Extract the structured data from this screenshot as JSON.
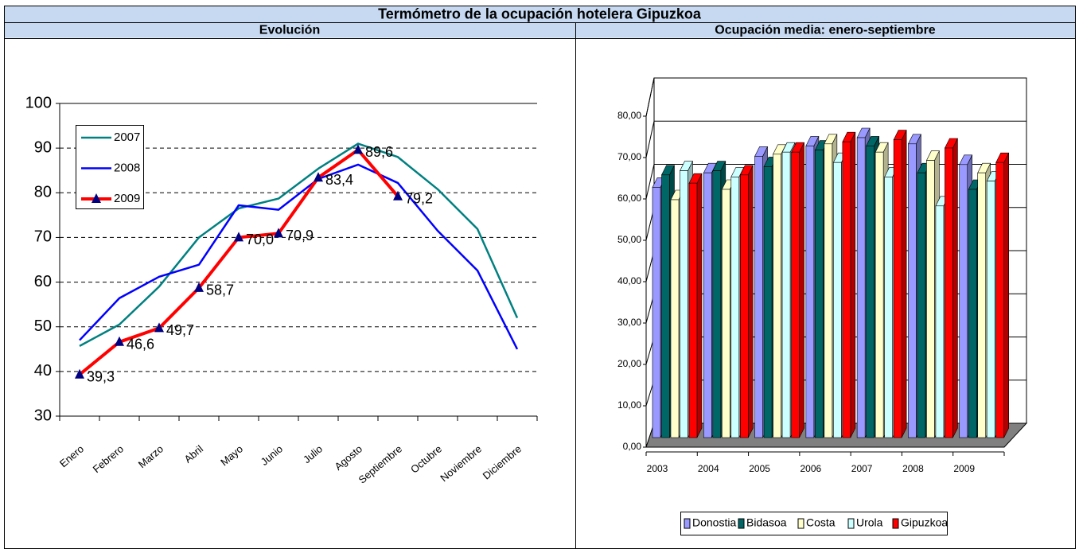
{
  "title": "Termómetro de la ocupación hotelera Gipuzkoa",
  "chart_data": [
    {
      "type": "line",
      "title": "Evolución",
      "categories": [
        "Enero",
        "Febrero",
        "Marzo",
        "Abril",
        "Mayo",
        "Junio",
        "Julio",
        "Agosto",
        "Septiembre",
        "Octubre",
        "Noviembre",
        "Diciembre"
      ],
      "series": [
        {
          "name": "2007",
          "color": "#008080",
          "values": [
            45.7,
            50.5,
            59,
            70,
            76.5,
            78.7,
            85.4,
            91,
            88,
            80.8,
            71.9,
            52
          ]
        },
        {
          "name": "2008",
          "color": "#0000ff",
          "values": [
            47,
            56.4,
            61.2,
            63.9,
            77.2,
            76.2,
            83.1,
            86.3,
            82.2,
            71.5,
            62.6,
            45
          ]
        },
        {
          "name": "2009",
          "color": "#ff0000",
          "marker_color": "#000080",
          "values": [
            39.3,
            46.6,
            49.7,
            58.7,
            70.0,
            70.9,
            83.4,
            89.6,
            79.2,
            null,
            null,
            null
          ],
          "value_labels": [
            "39,3",
            "46,6",
            "49,7",
            "58,7",
            "70,0",
            "70,9",
            "83,4",
            "89,6",
            "79,2",
            null,
            null,
            null
          ]
        }
      ],
      "ylim": [
        30,
        100
      ],
      "yticks": [
        30,
        40,
        50,
        60,
        70,
        80,
        90,
        100
      ],
      "grid": true,
      "legend": "upper left"
    },
    {
      "type": "bar3d",
      "title": "Ocupación media: enero-septiembre",
      "categories": [
        "2003",
        "2004",
        "2005",
        "2006",
        "2007",
        "2008",
        "2009"
      ],
      "series": [
        {
          "name": "Donostia",
          "color": "#9999ff",
          "values": [
            60.5,
            64,
            68,
            70.5,
            72.5,
            71,
            66
          ]
        },
        {
          "name": "Bidasoa",
          "color": "#006666",
          "values": [
            63.5,
            64.5,
            65.5,
            69.5,
            70.5,
            64,
            60
          ]
        },
        {
          "name": "Costa",
          "color": "#ffffcc",
          "values": [
            57.5,
            60,
            68.5,
            71,
            69,
            67,
            64
          ]
        },
        {
          "name": "Urola",
          "color": "#ccffff",
          "values": [
            64.5,
            63,
            69,
            66.5,
            63,
            56,
            62
          ]
        },
        {
          "name": "Gipuzkoa",
          "color": "#ff0000",
          "values": [
            61.5,
            63.5,
            69,
            71.5,
            72,
            70,
            66.5
          ]
        }
      ],
      "ylim": [
        0,
        80
      ],
      "yticks": [
        {
          "value": 0,
          "label": "0,00"
        },
        {
          "value": 10,
          "label": "10,00"
        },
        {
          "value": 20,
          "label": "20,00"
        },
        {
          "value": 30,
          "label": "30,00"
        },
        {
          "value": 40,
          "label": "40,00"
        },
        {
          "value": 50,
          "label": "50,00"
        },
        {
          "value": 60,
          "label": "60,00"
        },
        {
          "value": 70,
          "label": "70,00"
        },
        {
          "value": 80,
          "label": "80,00"
        }
      ],
      "grid": true,
      "legend": "bottom"
    }
  ]
}
